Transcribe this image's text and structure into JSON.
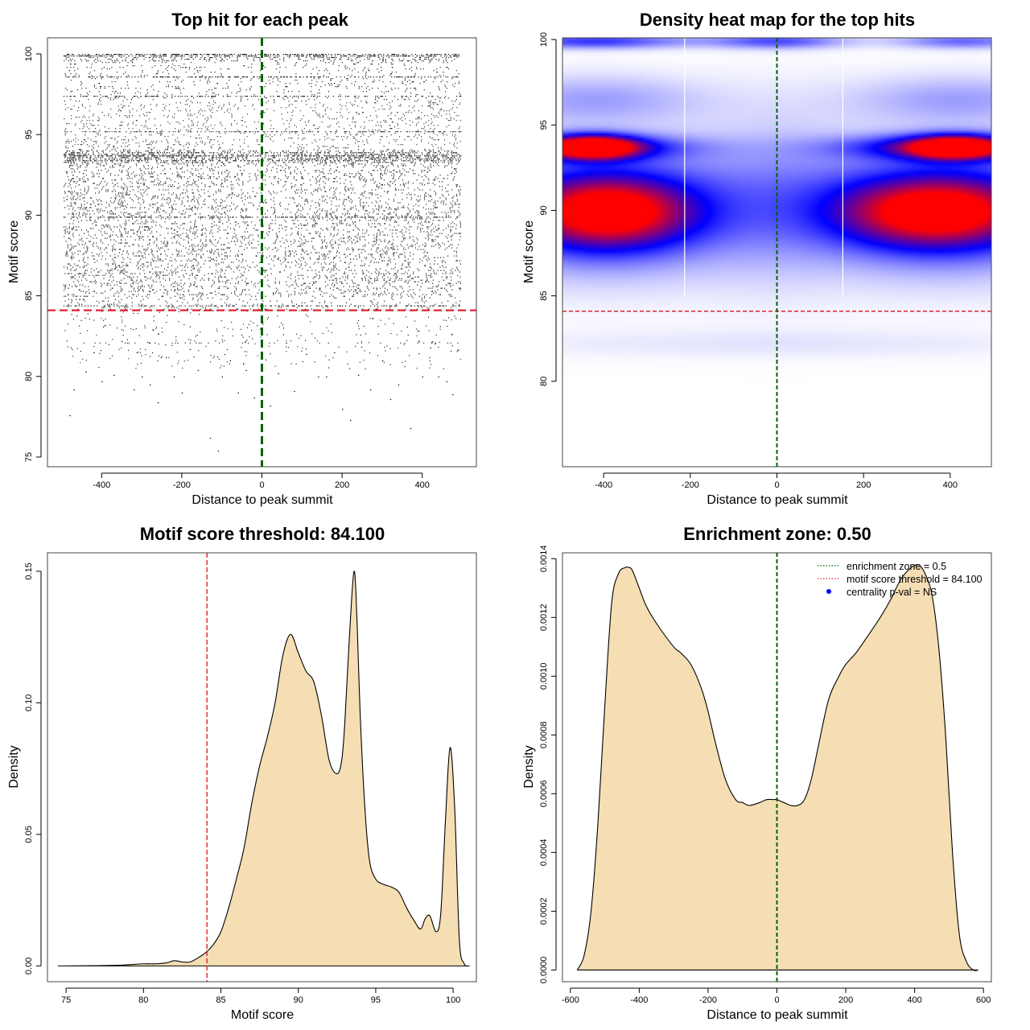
{
  "colors": {
    "dens_fill": "#F5DEB3",
    "threshold": "#E0212E",
    "center": "#006400",
    "heat_low": "#ffffff",
    "heat_mid": "#0000ff",
    "heat_high": "#ff0000"
  },
  "chart_data": [
    {
      "type": "scatter",
      "title": "Top hit for each peak",
      "xlabel": "Distance to peak summit",
      "ylabel": "Motif score",
      "xlim": [
        -535,
        535
      ],
      "ylim": [
        74.4,
        101
      ],
      "xticks": [
        -400,
        -200,
        0,
        200,
        400
      ],
      "xtick_labels": [
        "-400",
        "-200",
        "0",
        "200",
        "400"
      ],
      "yticks": [
        75,
        80,
        85,
        90,
        95,
        100
      ],
      "ytick_labels": [
        "75",
        "80",
        "85",
        "90",
        "95",
        "100"
      ],
      "threshold": 84.1,
      "center_line": 0,
      "x_range": [
        -495,
        495
      ],
      "score_bands": [
        {
          "ymin": 99.6,
          "ymax": 100,
          "weight": 0.05
        },
        {
          "ymin": 97,
          "ymax": 99.6,
          "weight": 0.08
        },
        {
          "ymin": 94,
          "ymax": 97,
          "weight": 0.12
        },
        {
          "ymin": 93.3,
          "ymax": 94,
          "weight": 0.18
        },
        {
          "ymin": 88,
          "ymax": 93.3,
          "weight": 0.35
        },
        {
          "ymin": 85,
          "ymax": 88,
          "weight": 0.2
        },
        {
          "ymin": 84.1,
          "ymax": 85,
          "weight": 0.03
        }
      ],
      "sparse_points": [
        [
          -480,
          77.6
        ],
        [
          -470,
          79.2
        ],
        [
          -440,
          80.3
        ],
        [
          -420,
          81.5
        ],
        [
          -400,
          79.7
        ],
        [
          -370,
          80.1
        ],
        [
          -350,
          82.2
        ],
        [
          -320,
          79.2
        ],
        [
          -300,
          80.0
        ],
        [
          -280,
          79.5
        ],
        [
          -260,
          78.4
        ],
        [
          -240,
          81.2
        ],
        [
          -220,
          80.0
        ],
        [
          -200,
          79.0
        ],
        [
          -180,
          81.7
        ],
        [
          -160,
          80.4
        ],
        [
          -130,
          76.2
        ],
        [
          -110,
          75.4
        ],
        [
          -100,
          80.0
        ],
        [
          -80,
          81.0
        ],
        [
          -60,
          79.0
        ],
        [
          -40,
          80.4
        ],
        [
          -20,
          78.7
        ],
        [
          20,
          78.2
        ],
        [
          40,
          80.2
        ],
        [
          60,
          82.1
        ],
        [
          80,
          79.1
        ],
        [
          110,
          81.4
        ],
        [
          140,
          80.0
        ],
        [
          160,
          80.0
        ],
        [
          180,
          81.5
        ],
        [
          200,
          78.0
        ],
        [
          220,
          77.3
        ],
        [
          240,
          80.1
        ],
        [
          270,
          79.2
        ],
        [
          300,
          81.0
        ],
        [
          320,
          78.6
        ],
        [
          340,
          79.5
        ],
        [
          370,
          76.8
        ],
        [
          400,
          80.0
        ],
        [
          420,
          81.8
        ],
        [
          440,
          80.0
        ],
        [
          460,
          79.7
        ],
        [
          475,
          78.9
        ]
      ]
    },
    {
      "type": "heatmap",
      "title": "Density heat map for the top hits",
      "xlabel": "Distance to peak summit",
      "ylabel": "Motif score",
      "xlim": [
        -495,
        495
      ],
      "ylim": [
        75,
        100.1
      ],
      "xticks": [
        -400,
        -200,
        0,
        200,
        400
      ],
      "xtick_labels": [
        "-400",
        "-200",
        "0",
        "200",
        "400"
      ],
      "yticks": [
        80,
        85,
        90,
        95,
        100
      ],
      "ytick_labels": [
        "80",
        "85",
        "90",
        "95",
        "100"
      ],
      "threshold": 84.1,
      "center_line": 0,
      "white_vlines": [
        -213,
        152
      ],
      "blobs": [
        {
          "x": -420,
          "y": 93.7,
          "sx": 65,
          "sy": 0.45,
          "a": 1.0
        },
        {
          "x": 410,
          "y": 93.7,
          "sx": 70,
          "sy": 0.45,
          "a": 1.0
        },
        {
          "x": -470,
          "y": 93.7,
          "sx": 170,
          "sy": 0.5,
          "a": 0.55
        },
        {
          "x": 400,
          "y": 93.7,
          "sx": 170,
          "sy": 0.5,
          "a": 0.55
        },
        {
          "x": -390,
          "y": 89.9,
          "sx": 130,
          "sy": 1.4,
          "a": 0.82
        },
        {
          "x": 360,
          "y": 89.9,
          "sx": 150,
          "sy": 1.4,
          "a": 0.82
        },
        {
          "x": -400,
          "y": 90.0,
          "sx": 230,
          "sy": 2.4,
          "a": 0.45
        },
        {
          "x": 400,
          "y": 90.0,
          "sx": 230,
          "sy": 2.4,
          "a": 0.45
        },
        {
          "x": 0,
          "y": 91,
          "sx": 130,
          "sy": 3.5,
          "a": 0.12
        },
        {
          "x": 0,
          "y": 99.9,
          "sx": 110,
          "sy": 0.3,
          "a": 0.35
        },
        {
          "x": -420,
          "y": 99.9,
          "sx": 150,
          "sy": 0.3,
          "a": 0.4
        },
        {
          "x": 430,
          "y": 99.9,
          "sx": 110,
          "sy": 0.3,
          "a": 0.3
        },
        {
          "x": -420,
          "y": 96.5,
          "sx": 180,
          "sy": 1.0,
          "a": 0.18
        },
        {
          "x": 420,
          "y": 96.5,
          "sx": 180,
          "sy": 1.0,
          "a": 0.18
        },
        {
          "x": 0,
          "y": 82.2,
          "sx": 500,
          "sy": 0.6,
          "a": 0.05
        }
      ]
    },
    {
      "type": "area",
      "title": "Motif score threshold: 84.100",
      "xlabel": "Motif score",
      "ylabel": "Density",
      "xlim": [
        73.8,
        101.5
      ],
      "ylim": [
        -0.006,
        0.157
      ],
      "xticks": [
        75,
        80,
        85,
        90,
        95,
        100
      ],
      "xtick_labels": [
        "75",
        "80",
        "85",
        "90",
        "95",
        "100"
      ],
      "yticks": [
        0,
        0.05,
        0.1,
        0.15
      ],
      "ytick_labels": [
        "0.00",
        "0.05",
        "0.10",
        "0.15"
      ],
      "threshold": 84.1,
      "x": [
        74.5,
        78,
        80,
        80.8,
        81.5,
        82,
        82.5,
        83,
        83.5,
        84,
        84.5,
        85,
        85.5,
        86,
        86.5,
        87,
        87.5,
        88,
        88.5,
        89,
        89.5,
        90,
        90.5,
        91,
        91.5,
        92,
        92.5,
        92.8,
        93,
        93.3,
        93.6,
        93.8,
        94,
        94.3,
        94.6,
        95,
        95.5,
        96,
        96.5,
        97,
        97.5,
        97.9,
        98.2,
        98.5,
        98.9,
        99.2,
        99.5,
        99.8,
        100.1,
        100.4,
        100.7,
        101
      ],
      "y": [
        0,
        0.0002,
        0.0008,
        0.0008,
        0.0012,
        0.002,
        0.0015,
        0.0015,
        0.003,
        0.005,
        0.008,
        0.013,
        0.022,
        0.033,
        0.045,
        0.062,
        0.076,
        0.087,
        0.1,
        0.118,
        0.126,
        0.119,
        0.112,
        0.108,
        0.095,
        0.078,
        0.073,
        0.078,
        0.092,
        0.125,
        0.15,
        0.13,
        0.095,
        0.06,
        0.04,
        0.033,
        0.031,
        0.03,
        0.028,
        0.022,
        0.017,
        0.014,
        0.018,
        0.019,
        0.013,
        0.02,
        0.055,
        0.083,
        0.06,
        0.01,
        0.001,
        0
      ]
    },
    {
      "type": "area",
      "title": "Enrichment zone: 0.50",
      "xlabel": "Distance to peak summit",
      "ylabel": "Density",
      "xlim": [
        -623,
        623
      ],
      "ylim": [
        -4e-05,
        0.00142
      ],
      "xticks": [
        -600,
        -400,
        -200,
        0,
        200,
        400,
        600
      ],
      "xtick_labels": [
        "-600",
        "-400",
        "-200",
        "0",
        "200",
        "400",
        "600"
      ],
      "yticks": [
        0,
        0.0002,
        0.0004,
        0.0006,
        0.0008,
        0.001,
        0.0012,
        0.0014
      ],
      "ytick_labels": [
        "0.0000",
        "0.0002",
        "0.0004",
        "0.0006",
        "0.0008",
        "0.0010",
        "0.0012",
        "0.0014"
      ],
      "center_line": 0,
      "x": [
        -580,
        -560,
        -540,
        -520,
        -500,
        -480,
        -460,
        -440,
        -430,
        -420,
        -400,
        -380,
        -350,
        -300,
        -280,
        -250,
        -220,
        -200,
        -180,
        -150,
        -120,
        -100,
        -80,
        -50,
        -30,
        -10,
        0,
        20,
        40,
        60,
        80,
        100,
        120,
        150,
        180,
        200,
        230,
        260,
        300,
        330,
        360,
        390,
        410,
        420,
        430,
        450,
        470,
        490,
        510,
        530,
        550,
        570,
        585
      ],
      "y": [
        0,
        5e-05,
        0.0002,
        0.0005,
        0.0009,
        0.00125,
        0.00135,
        0.00137,
        0.00137,
        0.00136,
        0.0013,
        0.00124,
        0.00118,
        0.0011,
        0.00108,
        0.00104,
        0.00096,
        0.00088,
        0.00078,
        0.00065,
        0.00058,
        0.00057,
        0.00056,
        0.00057,
        0.00058,
        0.00058,
        0.00058,
        0.00057,
        0.00056,
        0.00056,
        0.00058,
        0.00065,
        0.00076,
        0.00092,
        0.001,
        0.00104,
        0.00108,
        0.00113,
        0.0012,
        0.00126,
        0.00133,
        0.00137,
        0.00138,
        0.00137,
        0.00135,
        0.00128,
        0.0011,
        0.0008,
        0.0004,
        0.00012,
        3e-05,
        0,
        0
      ],
      "legend": [
        {
          "label": "enrichment zone = 0.5",
          "style": "dotted-line",
          "color": "#006400"
        },
        {
          "label": "motif score threshold = 84.100",
          "style": "dotted-line",
          "color": "#E0212E"
        },
        {
          "label": "centrality p-val = NS",
          "style": "point",
          "color": "#0000ff"
        }
      ]
    }
  ]
}
